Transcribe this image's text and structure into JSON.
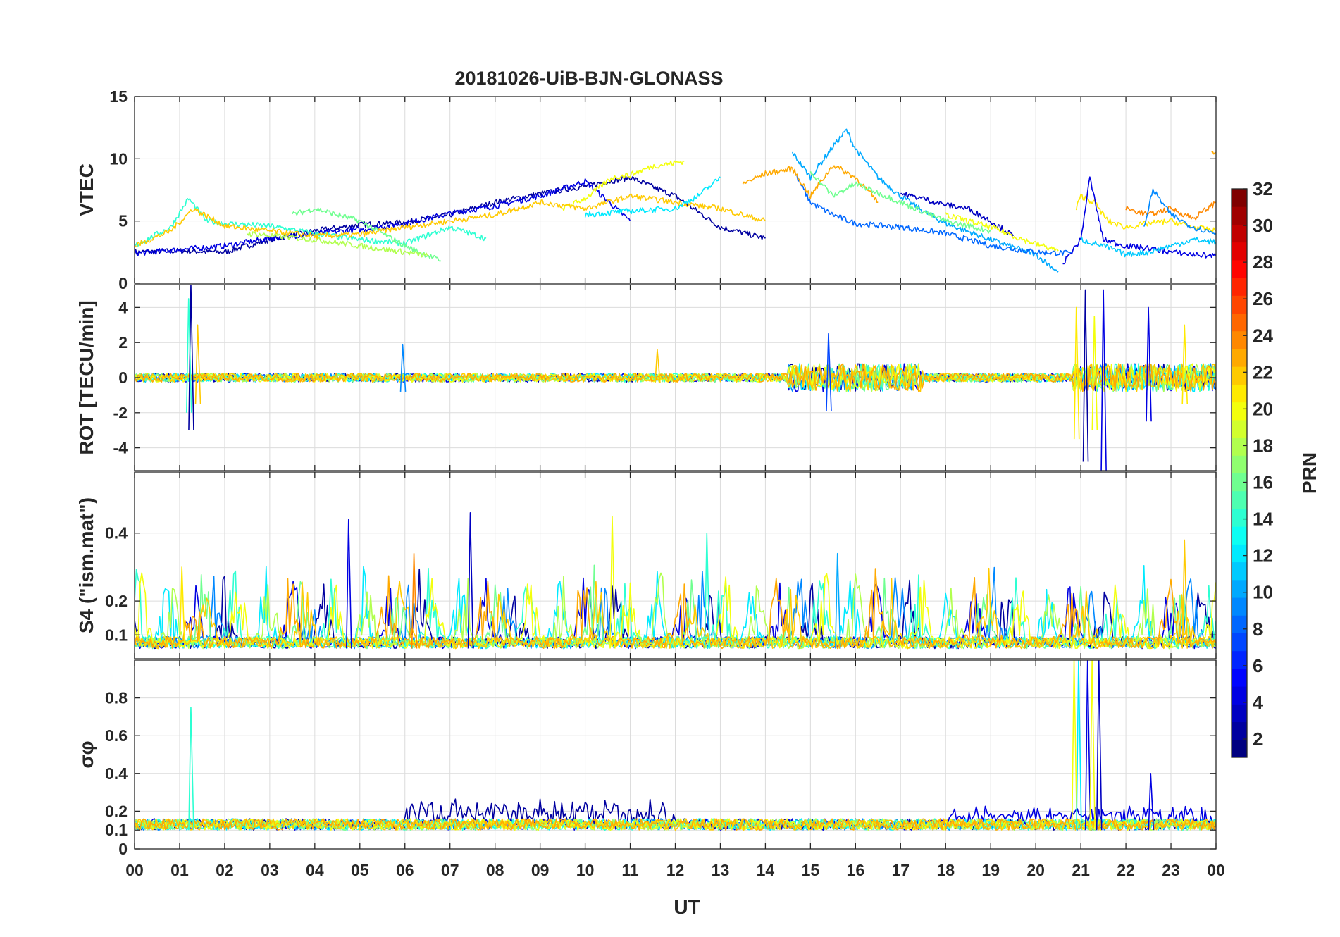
{
  "chart_data": {
    "type": "line",
    "title": "20181026-UiB-BJN-GLONASS",
    "xlabel": "UT",
    "x_ticks": [
      "00",
      "01",
      "02",
      "03",
      "04",
      "05",
      "06",
      "07",
      "08",
      "09",
      "10",
      "11",
      "12",
      "13",
      "14",
      "15",
      "16",
      "17",
      "18",
      "19",
      "20",
      "21",
      "22",
      "23",
      "00"
    ],
    "xlim_hours": [
      0,
      24
    ],
    "grid": true,
    "colorbar": {
      "label": "PRN",
      "range": [
        1,
        32
      ],
      "ticks": [
        "2",
        "4",
        "6",
        "8",
        "10",
        "12",
        "14",
        "16",
        "18",
        "20",
        "22",
        "24",
        "26",
        "28",
        "30",
        "32"
      ],
      "colormap": "jet",
      "placement": "right"
    },
    "panels": [
      {
        "ylabel": "VTEC",
        "ylim": [
          0,
          15
        ],
        "y_ticks": [
          "0",
          "5",
          "10",
          "15"
        ],
        "series": [
          {
            "prn": 2,
            "x": [
              0,
              1,
              2,
              3,
              4,
              5,
              6,
              7,
              8,
              9,
              10,
              11,
              12,
              13,
              14
            ],
            "y": [
              2.5,
              2.6,
              2.5,
              3.5,
              4.2,
              4.7,
              4.9,
              5.5,
              6.5,
              7.2,
              7.8,
              8.5,
              7.0,
              4.5,
              3.6
            ]
          },
          {
            "prn": 4,
            "x": [
              0,
              1,
              2,
              3,
              4,
              5,
              6,
              7,
              8,
              9,
              10,
              11
            ],
            "y": [
              2.4,
              2.7,
              3.0,
              3.6,
              4.0,
              4.3,
              4.8,
              5.6,
              6.2,
              7.0,
              8.2,
              5.0
            ]
          },
          {
            "prn": 10,
            "x": [
              14.6,
              15,
              15.5,
              15.8,
              16,
              16.5,
              17,
              17.5,
              18,
              19,
              20,
              20.5
            ],
            "y": [
              10.5,
              8.5,
              11.0,
              12.3,
              10.8,
              8.5,
              7.0,
              5.8,
              4.8,
              3.5,
              2.3,
              0.9
            ]
          },
          {
            "prn": 8,
            "x": [
              14.7,
              15,
              15.5,
              16,
              17,
              18,
              19,
              20,
              20.8
            ],
            "y": [
              8.5,
              6.5,
              5.5,
              4.8,
              4.5,
              4.0,
              3.0,
              2.5,
              2.4
            ]
          },
          {
            "prn": 14,
            "x": [
              0,
              0.8,
              1.2,
              1.6,
              2,
              3,
              4,
              5,
              6,
              7,
              7.8
            ],
            "y": [
              3.0,
              4.5,
              6.8,
              5.0,
              4.8,
              4.6,
              4.0,
              3.5,
              3.2,
              4.5,
              3.6
            ]
          },
          {
            "prn": 16,
            "x": [
              3.5,
              4,
              5,
              6,
              6.8
            ],
            "y": [
              5.5,
              6.0,
              5.0,
              3.0,
              1.8
            ]
          },
          {
            "prn": 18,
            "x": [
              2.5,
              4,
              5,
              6,
              6.5
            ],
            "y": [
              4.0,
              3.5,
              3.0,
              2.5,
              2.2
            ]
          },
          {
            "prn": 20,
            "x": [
              9.5,
              10,
              10.6,
              11,
              11.5,
              12.2
            ],
            "y": [
              6.0,
              6.8,
              8.5,
              8.7,
              9.4,
              9.8
            ]
          },
          {
            "prn": 22,
            "x": [
              0,
              0.8,
              1.3,
              2,
              3,
              4,
              5,
              6,
              7,
              8,
              9,
              10,
              11,
              12,
              13,
              14
            ],
            "y": [
              3.0,
              4.2,
              6.0,
              4.6,
              4.2,
              3.8,
              3.9,
              4.5,
              5.0,
              5.5,
              6.5,
              6.0,
              7.0,
              6.5,
              6.0,
              5.0
            ]
          },
          {
            "prn": 23,
            "x": [
              13.5,
              14,
              14.6,
              15,
              15.5,
              16,
              16.5
            ],
            "y": [
              8.0,
              8.8,
              9.2,
              7.0,
              9.5,
              8.5,
              6.5
            ]
          },
          {
            "prn": 12,
            "x": [
              10,
              11,
              12,
              12.5,
              13
            ],
            "y": [
              5.5,
              5.8,
              6.0,
              7.0,
              8.5
            ]
          },
          {
            "prn": 16,
            "x": [
              15,
              15.5,
              16,
              17,
              18,
              19
            ],
            "y": [
              9.0,
              7.0,
              8.0,
              6.5,
              5.0,
              4.2
            ]
          },
          {
            "prn": 3,
            "x": [
              17,
              17.5,
              18,
              18.5,
              19,
              19.5
            ],
            "y": [
              7.2,
              6.8,
              6.3,
              6.0,
              5.0,
              3.8
            ]
          },
          {
            "prn": 20,
            "x": [
              18,
              19,
              19.8,
              20.5
            ],
            "y": [
              5.5,
              4.5,
              3.4,
              2.6
            ]
          },
          {
            "prn": 21,
            "x": [
              20.9,
              21,
              21.3,
              21.6,
              22,
              22.5,
              23,
              23.5,
              24
            ],
            "y": [
              6.0,
              7.0,
              6.5,
              5.0,
              4.5,
              4.8,
              5.0,
              4.5,
              4.2
            ]
          },
          {
            "prn": 4,
            "x": [
              20.6,
              21,
              21.2,
              21.5,
              22,
              22.5,
              23,
              23.5,
              24
            ],
            "y": [
              1.6,
              3.5,
              8.5,
              3.5,
              3.0,
              2.8,
              2.5,
              2.3,
              2.2
            ]
          },
          {
            "prn": 11,
            "x": [
              21,
              21.5,
              22,
              22.5,
              23,
              23.5,
              24
            ],
            "y": [
              3.5,
              3.0,
              2.3,
              2.5,
              3.0,
              3.5,
              3.3
            ]
          },
          {
            "prn": 24,
            "x": [
              22,
              22.5,
              23,
              23.5,
              24
            ],
            "y": [
              6.0,
              5.5,
              6.0,
              5.2,
              6.5
            ]
          },
          {
            "prn": 9,
            "x": [
              22.4,
              22.6,
              23,
              23.5,
              24
            ],
            "y": [
              4.5,
              7.5,
              5.5,
              4.5,
              4.0
            ]
          },
          {
            "prn": 23,
            "x": [
              23.9,
              24
            ],
            "y": [
              10.6,
              10.5
            ]
          }
        ]
      },
      {
        "ylabel": "ROT [TECU/min]",
        "ylim": [
          -5.3,
          5.3
        ],
        "y_ticks": [
          "-4",
          "-2",
          "0",
          "2",
          "4"
        ],
        "spikes": [
          {
            "prn": 2,
            "x": 1.25,
            "y": [
              -3.0,
              5.3
            ]
          },
          {
            "prn": 14,
            "x": 1.2,
            "y": [
              -2.0,
              4.5
            ]
          },
          {
            "prn": 22,
            "x": 1.4,
            "y": [
              -1.5,
              3.0
            ]
          },
          {
            "prn": 9,
            "x": 5.95,
            "y": [
              -0.8,
              1.9
            ]
          },
          {
            "prn": 22,
            "x": 11.6,
            "y": [
              -0.3,
              1.6
            ]
          },
          {
            "prn": 7,
            "x": 15.4,
            "y": [
              -1.9,
              2.5
            ]
          },
          {
            "prn": 21,
            "x": 20.9,
            "y": [
              -3.5,
              4.0
            ]
          },
          {
            "prn": 2,
            "x": 21.1,
            "y": [
              -4.8,
              5.0
            ]
          },
          {
            "prn": 20,
            "x": 21.3,
            "y": [
              -3.0,
              3.5
            ]
          },
          {
            "prn": 4,
            "x": 21.5,
            "y": [
              -5.3,
              5.0
            ]
          },
          {
            "prn": 4,
            "x": 22.5,
            "y": [
              -2.5,
              4.0
            ]
          },
          {
            "prn": 21,
            "x": 23.3,
            "y": [
              -1.5,
              3.0
            ]
          }
        ]
      },
      {
        "ylabel": "S4 (\"ism.mat\")",
        "ylim": [
          0.03,
          0.58
        ],
        "y_ticks": [
          "0.1",
          "0.2",
          "0.4"
        ],
        "spikes": [
          {
            "prn": 4,
            "x": 4.75,
            "y": [
              0.06,
              0.44
            ]
          },
          {
            "prn": 3,
            "x": 7.45,
            "y": [
              0.06,
              0.46
            ]
          },
          {
            "prn": 20,
            "x": 10.6,
            "y": [
              0.06,
              0.45
            ]
          },
          {
            "prn": 14,
            "x": 12.7,
            "y": [
              0.06,
              0.4
            ]
          },
          {
            "prn": 22,
            "x": 23.3,
            "y": [
              0.06,
              0.38
            ]
          },
          {
            "prn": 24,
            "x": 6.2,
            "y": [
              0.06,
              0.34
            ]
          },
          {
            "prn": 10,
            "x": 15.6,
            "y": [
              0.06,
              0.34
            ]
          },
          {
            "prn": 21,
            "x": 1.05,
            "y": [
              0.06,
              0.3
            ]
          }
        ]
      },
      {
        "ylabel": "σφ",
        "ylim": [
          0,
          1
        ],
        "y_ticks": [
          "0",
          "0.1",
          "0.2",
          "0.4",
          "0.6",
          "0.8"
        ],
        "spikes": [
          {
            "prn": 14,
            "x": 1.25,
            "y": [
              0.1,
              0.75
            ]
          },
          {
            "prn": 20,
            "x": 20.85,
            "y": [
              0.1,
              1.0
            ]
          },
          {
            "prn": 12,
            "x": 20.95,
            "y": [
              0.1,
              1.0
            ]
          },
          {
            "prn": 4,
            "x": 21.15,
            "y": [
              0.1,
              1.0
            ]
          },
          {
            "prn": 20,
            "x": 21.25,
            "y": [
              0.1,
              1.0
            ]
          },
          {
            "prn": 3,
            "x": 21.4,
            "y": [
              0.1,
              1.0
            ]
          },
          {
            "prn": 4,
            "x": 22.55,
            "y": [
              0.1,
              0.4
            ]
          }
        ]
      }
    ]
  }
}
